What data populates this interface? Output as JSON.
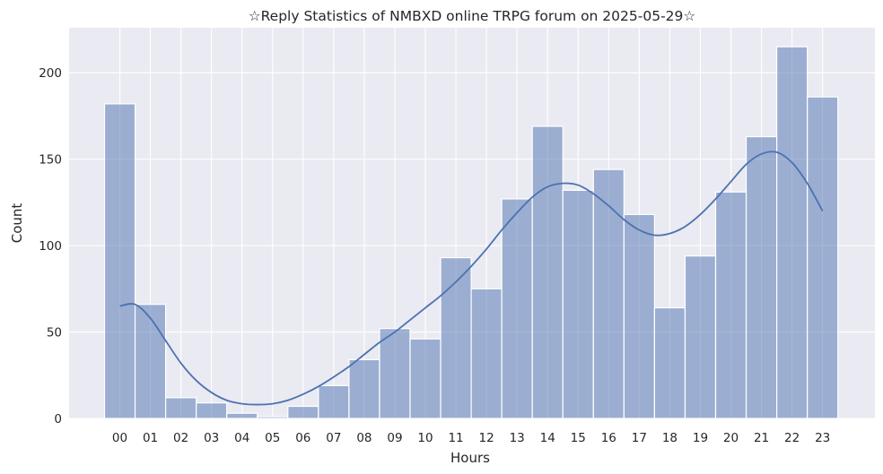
{
  "chart_data": {
    "type": "bar",
    "title": "☆Reply Statistics of NMBXD online TRPG forum on 2025-05-29☆",
    "xlabel": "Hours",
    "ylabel": "Count",
    "categories": [
      "00",
      "01",
      "02",
      "03",
      "04",
      "05",
      "06",
      "07",
      "08",
      "09",
      "10",
      "11",
      "12",
      "13",
      "14",
      "15",
      "16",
      "17",
      "18",
      "19",
      "20",
      "21",
      "22",
      "23"
    ],
    "values": [
      182,
      66,
      12,
      9,
      3,
      1,
      7,
      19,
      34,
      52,
      46,
      93,
      75,
      127,
      169,
      132,
      144,
      118,
      64,
      94,
      131,
      163,
      215,
      186
    ],
    "yticks": [
      0,
      50,
      100,
      150,
      200
    ],
    "ylim": [
      0,
      226
    ],
    "grid": true,
    "kde": {
      "x": [
        0,
        0.5,
        1,
        1.5,
        2,
        2.5,
        3,
        3.5,
        4,
        4.5,
        5,
        5.5,
        6,
        6.5,
        7,
        7.5,
        8,
        8.5,
        9,
        9.5,
        10,
        10.5,
        11,
        11.5,
        12,
        12.5,
        13,
        13.5,
        14,
        14.5,
        15,
        15.5,
        16,
        16.5,
        17,
        17.5,
        18,
        18.5,
        19,
        19.5,
        20,
        20.5,
        21,
        21.5,
        22,
        22.5,
        23
      ],
      "y": [
        65,
        66,
        58,
        45,
        32,
        22,
        15,
        10.5,
        8.5,
        8,
        8.5,
        10.5,
        14,
        18.5,
        24,
        30,
        37,
        44,
        50,
        57,
        64,
        71,
        79,
        88,
        98,
        109,
        119,
        128,
        134,
        136,
        135,
        130,
        123,
        115,
        109,
        106,
        107,
        111,
        118,
        127,
        137,
        147,
        153,
        154,
        148,
        136,
        120
      ]
    },
    "colors": {
      "bar": "#4c72b0",
      "line": "#4c72b0",
      "plot_background": "#eaeaf2",
      "grid": "#ffffff"
    }
  }
}
